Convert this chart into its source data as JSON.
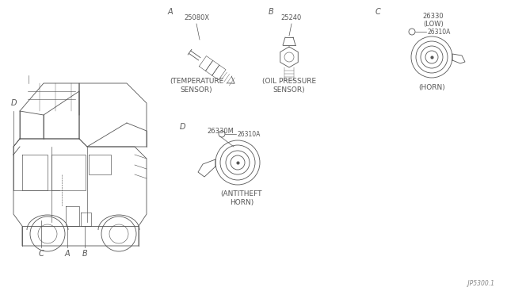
{
  "bg_color": "#ffffff",
  "line_color": "#555555",
  "lw": 0.6,
  "footer_text": ".JP5300.1",
  "section_A_part": "25080X",
  "section_A_label": "(TEMPERATURE\nSENSOR)",
  "section_B_part": "25240",
  "section_B_label": "(OIL PRESSURE\nSENSOR)",
  "section_C_part1": "26330",
  "section_C_part2": "(LOW)",
  "section_C_part3": "26310A",
  "section_C_label": "(HORN)",
  "section_D_part1": "26330M",
  "section_D_part2": "26310A",
  "section_D_label": "(ANTITHEFT\nHORN)",
  "font_size": 6,
  "label_font_size": 6.5
}
